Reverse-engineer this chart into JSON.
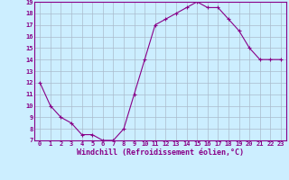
{
  "x": [
    0,
    1,
    2,
    3,
    4,
    5,
    6,
    7,
    8,
    9,
    10,
    11,
    12,
    13,
    14,
    15,
    16,
    17,
    18,
    19,
    20,
    21,
    22,
    23
  ],
  "y": [
    12,
    10,
    9,
    8.5,
    7.5,
    7.5,
    7,
    7,
    8,
    11,
    14,
    17,
    17.5,
    18,
    18.5,
    19,
    18.5,
    18.5,
    17.5,
    16.5,
    15,
    14,
    14,
    14
  ],
  "line_color": "#880088",
  "marker": "+",
  "background_color": "#cceeff",
  "grid_color": "#aabbcc",
  "xlabel": "Windchill (Refroidissement éolien,°C)",
  "xlabel_color": "#880088",
  "ylim": [
    7,
    19
  ],
  "yticks": [
    7,
    8,
    9,
    10,
    11,
    12,
    13,
    14,
    15,
    16,
    17,
    18,
    19
  ],
  "xticks": [
    0,
    1,
    2,
    3,
    4,
    5,
    6,
    7,
    8,
    9,
    10,
    11,
    12,
    13,
    14,
    15,
    16,
    17,
    18,
    19,
    20,
    21,
    22,
    23
  ],
  "tick_color": "#880088",
  "fig_bg": "#cceeff",
  "tick_fontsize": 5,
  "xlabel_fontsize": 6
}
